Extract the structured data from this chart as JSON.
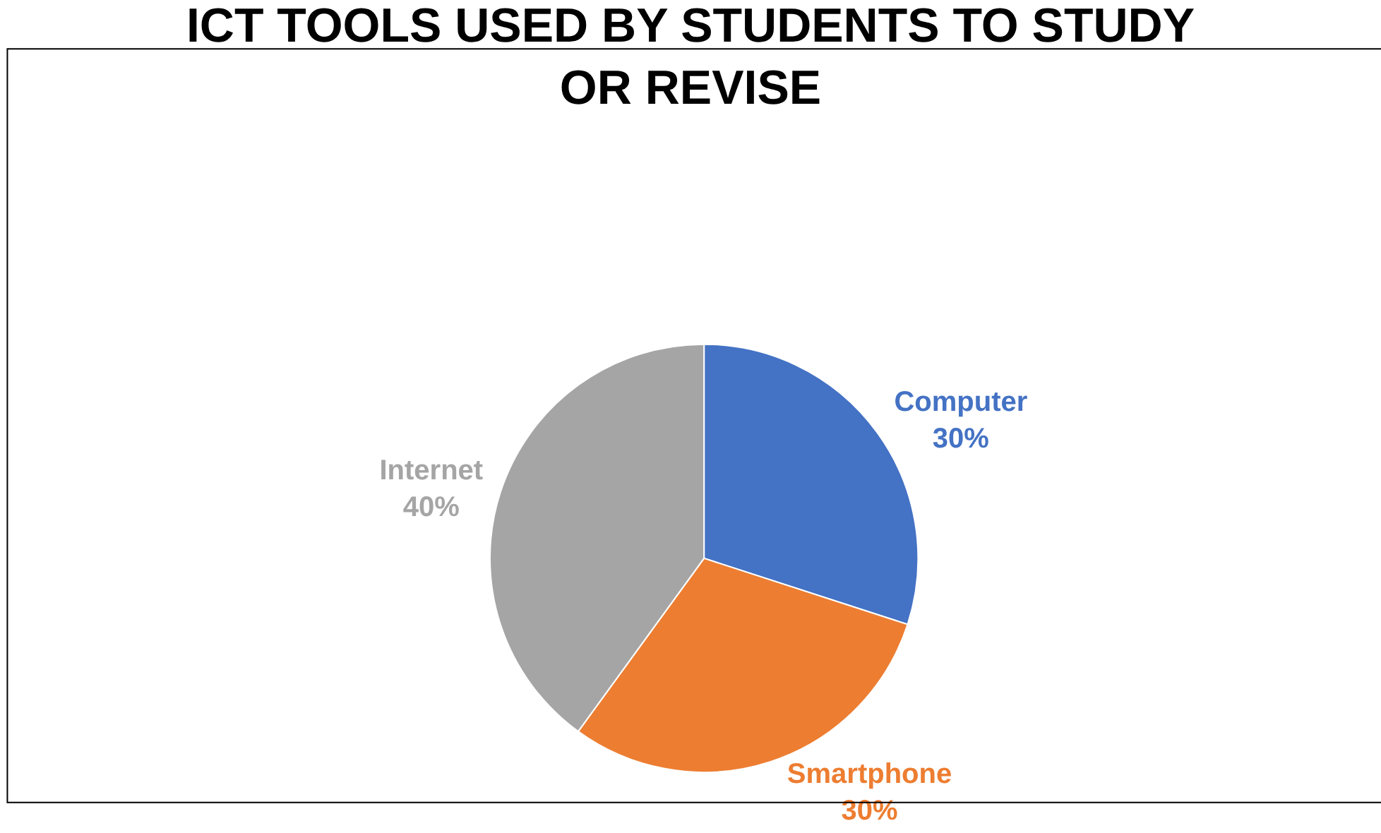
{
  "chart_data": {
    "type": "pie",
    "title": "ICT TOOLS USED BY STUDENTS TO STUDY OR REVISE",
    "categories": [
      "Computer",
      "Smartphone",
      "Internet"
    ],
    "values": [
      30,
      30,
      40
    ],
    "value_labels": [
      "30%",
      "30%",
      "40%"
    ],
    "colors": [
      "#4472c4",
      "#ed7d31",
      "#a5a5a5"
    ],
    "legend": false
  }
}
